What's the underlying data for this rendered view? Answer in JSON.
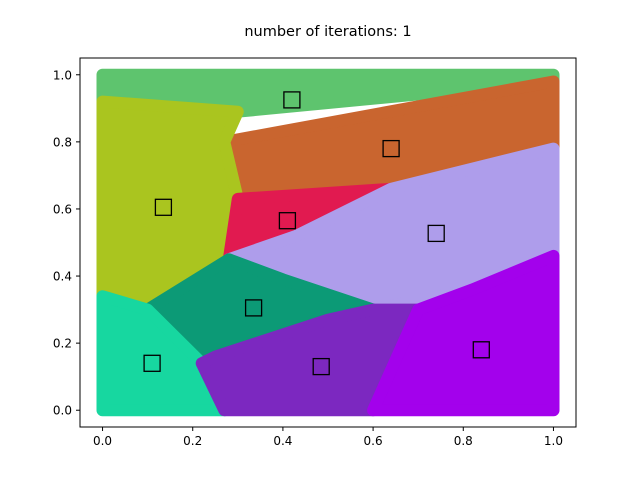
{
  "chart_data": {
    "type": "scatter",
    "title": "number of iterations: 1",
    "xlabel": "",
    "ylabel": "",
    "xlim": [
      -0.05,
      1.05
    ],
    "ylim": [
      -0.05,
      1.05
    ],
    "xticks": [
      0.0,
      0.2,
      0.4,
      0.6,
      0.8,
      1.0
    ],
    "yticks": [
      0.0,
      0.2,
      0.4,
      0.6,
      0.8,
      1.0
    ],
    "xtick_labels": [
      "0.0",
      "0.2",
      "0.4",
      "0.6",
      "0.8",
      "1.0"
    ],
    "ytick_labels": [
      "0.0",
      "0.2",
      "0.4",
      "0.6",
      "0.8",
      "1.0"
    ],
    "grid": false,
    "cluster_regions": [
      {
        "color": "#5ec46e",
        "polygon": [
          [
            0.0,
            1.0
          ],
          [
            1.0,
            1.0
          ],
          [
            1.0,
            0.98
          ],
          [
            0.3,
            0.89
          ],
          [
            0.0,
            0.92
          ]
        ]
      },
      {
        "color": "#c9652f",
        "polygon": [
          [
            0.27,
            0.8
          ],
          [
            1.0,
            0.98
          ],
          [
            1.0,
            0.78
          ],
          [
            0.64,
            0.66
          ],
          [
            0.3,
            0.63
          ]
        ]
      },
      {
        "color": "#aac51f",
        "polygon": [
          [
            0.0,
            0.92
          ],
          [
            0.3,
            0.89
          ],
          [
            0.27,
            0.8
          ],
          [
            0.3,
            0.63
          ],
          [
            0.28,
            0.45
          ],
          [
            0.1,
            0.3
          ],
          [
            0.0,
            0.34
          ]
        ]
      },
      {
        "color": "#e11a50",
        "polygon": [
          [
            0.3,
            0.63
          ],
          [
            0.64,
            0.66
          ],
          [
            0.43,
            0.52
          ],
          [
            0.28,
            0.45
          ]
        ]
      },
      {
        "color": "#ae9deb",
        "polygon": [
          [
            0.64,
            0.66
          ],
          [
            1.0,
            0.78
          ],
          [
            1.0,
            0.46
          ],
          [
            0.82,
            0.36
          ],
          [
            0.6,
            0.3
          ],
          [
            0.4,
            0.39
          ],
          [
            0.28,
            0.45
          ],
          [
            0.43,
            0.52
          ]
        ]
      },
      {
        "color": "#0c9a76",
        "polygon": [
          [
            0.28,
            0.45
          ],
          [
            0.4,
            0.39
          ],
          [
            0.6,
            0.3
          ],
          [
            0.5,
            0.27
          ],
          [
            0.25,
            0.16
          ],
          [
            0.22,
            0.14
          ],
          [
            0.1,
            0.3
          ]
        ]
      },
      {
        "color": "#17d7a0",
        "polygon": [
          [
            0.0,
            0.34
          ],
          [
            0.1,
            0.3
          ],
          [
            0.22,
            0.14
          ],
          [
            0.27,
            0.0
          ],
          [
            0.0,
            0.0
          ]
        ]
      },
      {
        "color": "#7c28c0",
        "polygon": [
          [
            0.22,
            0.14
          ],
          [
            0.25,
            0.16
          ],
          [
            0.5,
            0.27
          ],
          [
            0.6,
            0.3
          ],
          [
            0.7,
            0.3
          ],
          [
            0.6,
            0.0
          ],
          [
            0.27,
            0.0
          ]
        ]
      },
      {
        "color": "#a301ec",
        "polygon": [
          [
            0.6,
            0.0
          ],
          [
            0.7,
            0.3
          ],
          [
            0.82,
            0.36
          ],
          [
            1.0,
            0.46
          ],
          [
            1.0,
            0.0
          ]
        ]
      }
    ],
    "centroids": [
      {
        "x": 0.42,
        "y": 0.925
      },
      {
        "x": 0.64,
        "y": 0.78
      },
      {
        "x": 0.135,
        "y": 0.605
      },
      {
        "x": 0.41,
        "y": 0.565
      },
      {
        "x": 0.74,
        "y": 0.527
      },
      {
        "x": 0.335,
        "y": 0.305
      },
      {
        "x": 0.11,
        "y": 0.14
      },
      {
        "x": 0.485,
        "y": 0.13
      },
      {
        "x": 0.84,
        "y": 0.18
      }
    ],
    "centroid_marker": {
      "shape": "square",
      "face": "none",
      "edge_color": "#000000"
    }
  }
}
